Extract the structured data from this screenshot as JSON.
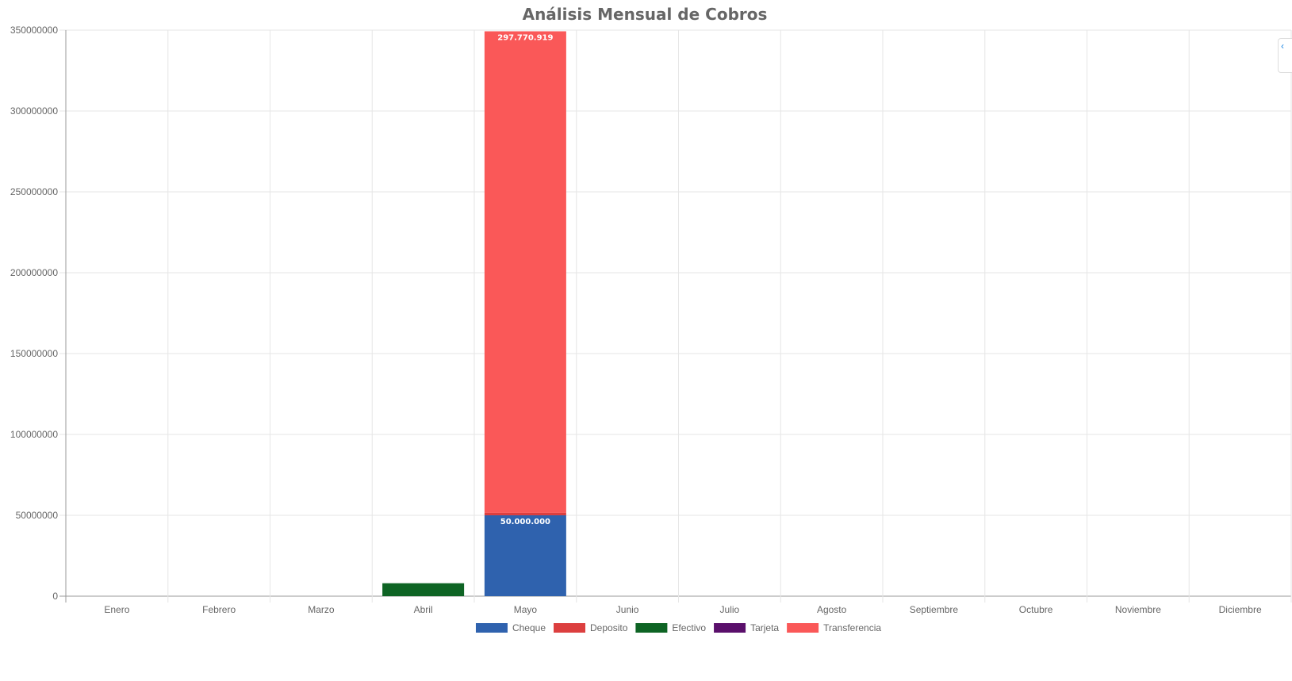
{
  "chart_data": {
    "type": "bar",
    "stacked": true,
    "title": "Análisis Mensual de Cobros",
    "xlabel": "",
    "ylabel": "",
    "categories": [
      "Enero",
      "Febrero",
      "Marzo",
      "Abril",
      "Mayo",
      "Junio",
      "Julio",
      "Agosto",
      "Septiembre",
      "Octubre",
      "Noviembre",
      "Diciembre"
    ],
    "series": [
      {
        "name": "Cheque",
        "color": "#2f62ae",
        "values": [
          0,
          0,
          0,
          0,
          50000000,
          0,
          0,
          0,
          0,
          0,
          0,
          0
        ]
      },
      {
        "name": "Deposito",
        "color": "#dc3f3f",
        "values": [
          0,
          0,
          0,
          0,
          1500000,
          0,
          0,
          0,
          0,
          0,
          0,
          0
        ]
      },
      {
        "name": "Efectivo",
        "color": "#0e6424",
        "values": [
          0,
          0,
          0,
          8000000,
          0,
          0,
          0,
          0,
          0,
          0,
          0,
          0
        ]
      },
      {
        "name": "Tarjeta",
        "color": "#5a0f6b",
        "values": [
          0,
          0,
          0,
          0,
          0,
          0,
          0,
          0,
          0,
          0,
          0,
          0
        ]
      },
      {
        "name": "Transferencia",
        "color": "#fa5858",
        "values": [
          0,
          0,
          0,
          0,
          297770919,
          0,
          0,
          0,
          0,
          0,
          0,
          0
        ]
      }
    ],
    "data_labels": [
      {
        "series": "Transferencia",
        "category": "Mayo",
        "text": "297.770.919"
      },
      {
        "series": "Cheque",
        "category": "Mayo",
        "text": "50.000.000"
      }
    ],
    "ylim": [
      0,
      350000000
    ],
    "yticks": [
      0,
      50000000,
      100000000,
      150000000,
      200000000,
      250000000,
      300000000,
      350000000
    ],
    "ytick_labels": [
      "0",
      "50000000",
      "100000000",
      "150000000",
      "200000000",
      "250000000",
      "300000000",
      "350000000"
    ],
    "grid": true,
    "legend": "bottom-center"
  },
  "side_tab": {
    "icon": "chevron-left-icon",
    "glyph": "‹"
  }
}
